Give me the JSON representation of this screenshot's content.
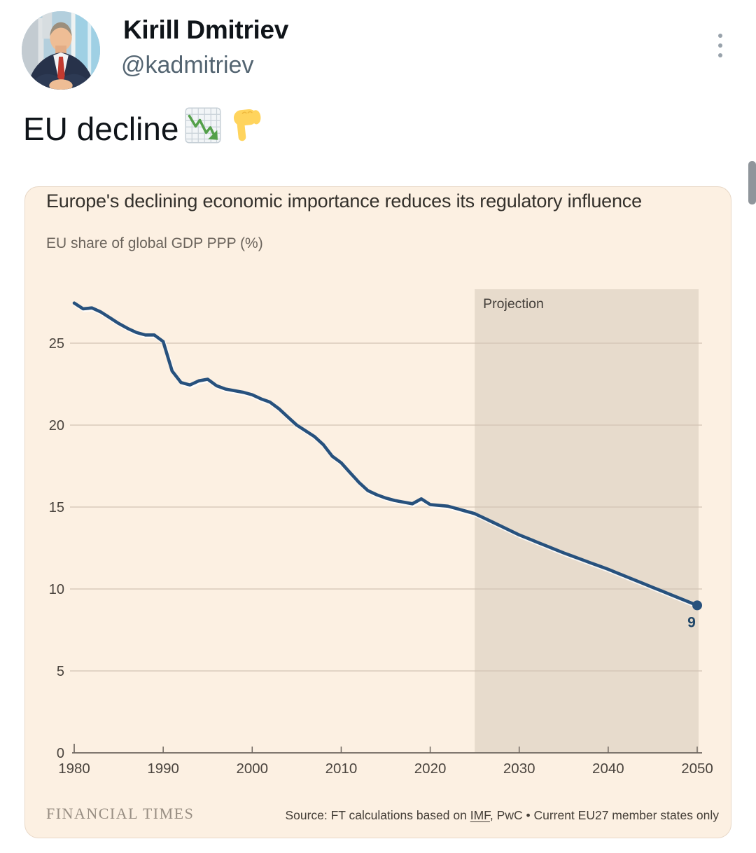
{
  "tweet": {
    "author_name": "Kirill Dmitriev",
    "author_handle": "@kadmitriev",
    "text": "EU decline",
    "emoji_names": [
      "chart-decreasing",
      "backhand-index-pointing-down"
    ]
  },
  "card": {
    "title": "Europe's declining economic importance reduces its regulatory influence",
    "subtitle": "EU share of global GDP PPP (%)",
    "brand": "FINANCIAL TIMES",
    "source_prefix": "Source: FT calculations based on ",
    "source_link_text": "IMF",
    "source_suffix": ", PwC • Current EU27 member states only"
  },
  "chart_data": {
    "type": "line",
    "title": "Europe's declining economic importance reduces its regulatory influence",
    "ylabel": "EU share of global GDP PPP (%)",
    "xlim": [
      1980,
      2050
    ],
    "ylim": [
      0,
      28.3
    ],
    "yticks": [
      0,
      5,
      10,
      15,
      20,
      25
    ],
    "xticks": [
      1980,
      1990,
      2000,
      2010,
      2020,
      2030,
      2040,
      2050
    ],
    "grid": true,
    "legend": "none",
    "projection": {
      "label": "Projection",
      "start_year": 2025,
      "end_year": 2050
    },
    "annotation_end": {
      "year": 2050,
      "value": 9,
      "label": "9"
    },
    "series": [
      {
        "name": "EU share of global GDP PPP (%)",
        "points": [
          [
            1980,
            27.45
          ],
          [
            1981,
            27.1
          ],
          [
            1982,
            27.15
          ],
          [
            1983,
            26.9
          ],
          [
            1984,
            26.55
          ],
          [
            1985,
            26.2
          ],
          [
            1986,
            25.9
          ],
          [
            1987,
            25.65
          ],
          [
            1988,
            25.5
          ],
          [
            1989,
            25.5
          ],
          [
            1990,
            25.1
          ],
          [
            1991,
            23.3
          ],
          [
            1992,
            22.6
          ],
          [
            1993,
            22.45
          ],
          [
            1994,
            22.7
          ],
          [
            1995,
            22.8
          ],
          [
            1996,
            22.4
          ],
          [
            1997,
            22.2
          ],
          [
            1998,
            22.1
          ],
          [
            1999,
            22.0
          ],
          [
            2000,
            21.85
          ],
          [
            2001,
            21.6
          ],
          [
            2002,
            21.4
          ],
          [
            2003,
            21.0
          ],
          [
            2004,
            20.5
          ],
          [
            2005,
            20.0
          ],
          [
            2006,
            19.65
          ],
          [
            2007,
            19.3
          ],
          [
            2008,
            18.8
          ],
          [
            2009,
            18.1
          ],
          [
            2010,
            17.7
          ],
          [
            2011,
            17.1
          ],
          [
            2012,
            16.5
          ],
          [
            2013,
            16.0
          ],
          [
            2014,
            15.75
          ],
          [
            2015,
            15.55
          ],
          [
            2016,
            15.4
          ],
          [
            2017,
            15.3
          ],
          [
            2018,
            15.2
          ],
          [
            2019,
            15.5
          ],
          [
            2020,
            15.15
          ],
          [
            2021,
            15.1
          ],
          [
            2022,
            15.05
          ],
          [
            2023,
            14.9
          ],
          [
            2024,
            14.75
          ],
          [
            2025,
            14.6
          ],
          [
            2026,
            14.34
          ],
          [
            2027,
            14.08
          ],
          [
            2028,
            13.82
          ],
          [
            2029,
            13.56
          ],
          [
            2030,
            13.3
          ],
          [
            2031,
            13.08
          ],
          [
            2032,
            12.86
          ],
          [
            2033,
            12.64
          ],
          [
            2034,
            12.42
          ],
          [
            2035,
            12.2
          ],
          [
            2036,
            12.0
          ],
          [
            2037,
            11.8
          ],
          [
            2038,
            11.6
          ],
          [
            2039,
            11.4
          ],
          [
            2040,
            11.2
          ],
          [
            2041,
            10.98
          ],
          [
            2042,
            10.76
          ],
          [
            2043,
            10.54
          ],
          [
            2044,
            10.32
          ],
          [
            2045,
            10.1
          ],
          [
            2046,
            9.88
          ],
          [
            2047,
            9.66
          ],
          [
            2048,
            9.44
          ],
          [
            2049,
            9.22
          ],
          [
            2050,
            9.0
          ]
        ]
      }
    ],
    "colors": {
      "line": "#27517d",
      "band": "#e7dbcc",
      "grid": "#d2c4b4",
      "axis": "#6f6760",
      "tick_label": "#4a443e",
      "projection_label": "#45403b",
      "annotation": "#1f4668",
      "background": "#fcf0e2"
    }
  }
}
